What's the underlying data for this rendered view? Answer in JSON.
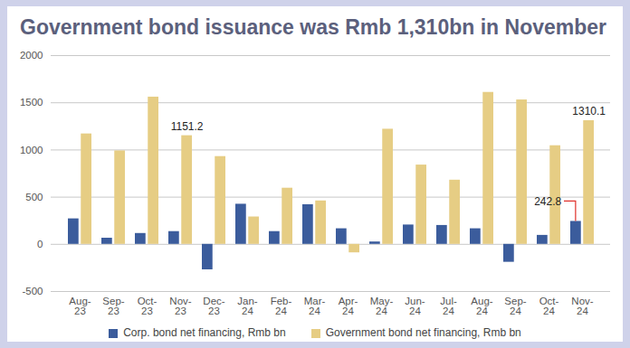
{
  "chart_data": {
    "type": "bar",
    "title": "Government bond issuance was Rmb 1,310bn in November",
    "categories": [
      "Aug-23",
      "Sep-23",
      "Oct-23",
      "Nov-23",
      "Dec-23",
      "Jan-24",
      "Feb-24",
      "Mar-24",
      "Apr-24",
      "May-24",
      "Jun-24",
      "Jul-24",
      "Aug-24",
      "Sep-24",
      "Oct-24",
      "Nov-24"
    ],
    "series": [
      {
        "name": "Corp. bond net financing, Rmb bn",
        "color": "#3b5c9c",
        "values": [
          270,
          65,
          115,
          135,
          -270,
          425,
          135,
          420,
          165,
          25,
          205,
          200,
          165,
          -190,
          95,
          242.8
        ]
      },
      {
        "name": "Government bond net financing, Rmb bn",
        "color": "#e6cd84",
        "values": [
          1170,
          990,
          1560,
          1151.2,
          930,
          290,
          595,
          460,
          -90,
          1220,
          840,
          680,
          1610,
          1530,
          1045,
          1310.1
        ]
      }
    ],
    "ylim": [
      -500,
      2000
    ],
    "yticks": [
      -500,
      0,
      500,
      1000,
      1500,
      2000
    ],
    "grid": true,
    "legend": "bottom",
    "annotations": [
      {
        "category": "Nov-23",
        "series": "Government bond net financing, Rmb bn",
        "label": "1151.2"
      },
      {
        "category": "Nov-24",
        "series": "Corp. bond net financing, Rmb bn",
        "label": "242.8"
      },
      {
        "category": "Nov-24",
        "series": "Government bond net financing, Rmb bn",
        "label": "1310.1"
      }
    ]
  }
}
